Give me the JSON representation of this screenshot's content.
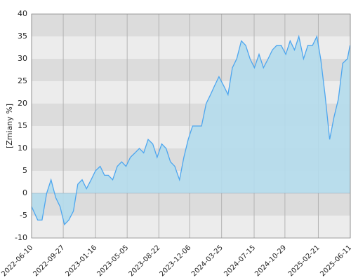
{
  "chart_data": {
    "type": "area",
    "ylabel": "[Zmiany %]",
    "x": [
      "2022-06-10",
      "2022-07-01",
      "2022-07-16",
      "2022-08-01",
      "2022-08-16",
      "2022-09-01",
      "2022-09-16",
      "2022-10-01",
      "2022-10-16",
      "2022-11-01",
      "2022-11-16",
      "2022-12-01",
      "2022-12-16",
      "2023-01-01",
      "2023-01-16",
      "2023-02-01",
      "2023-02-16",
      "2023-03-01",
      "2023-03-16",
      "2023-04-01",
      "2023-04-16",
      "2023-05-01",
      "2023-05-16",
      "2023-06-01",
      "2023-06-16",
      "2023-07-01",
      "2023-07-16",
      "2023-08-01",
      "2023-08-16",
      "2023-09-01",
      "2023-09-16",
      "2023-10-01",
      "2023-10-16",
      "2023-11-01",
      "2023-11-16",
      "2023-12-01",
      "2023-12-16",
      "2024-01-01",
      "2024-01-16",
      "2024-02-01",
      "2024-02-16",
      "2024-03-01",
      "2024-03-16",
      "2024-04-01",
      "2024-04-16",
      "2024-05-01",
      "2024-05-16",
      "2024-06-01",
      "2024-06-16",
      "2024-07-01",
      "2024-07-16",
      "2024-08-01",
      "2024-08-16",
      "2024-09-01",
      "2024-09-16",
      "2024-10-01",
      "2024-10-16",
      "2024-11-01",
      "2024-11-16",
      "2024-12-01",
      "2024-12-16",
      "2025-01-01",
      "2025-01-16",
      "2025-02-01",
      "2025-02-16",
      "2025-03-01",
      "2025-03-16",
      "2025-04-01",
      "2025-04-16",
      "2025-05-01",
      "2025-05-16",
      "2025-06-01",
      "2025-06-10"
    ],
    "series": [
      {
        "color": "#4da6ef",
        "fill": "#b4dcec",
        "values": [
          -3,
          -6,
          -6,
          0,
          3,
          -1,
          -3,
          -7,
          -6,
          -4,
          2,
          3,
          1,
          3,
          5,
          6,
          4,
          4,
          3,
          6,
          7,
          6,
          8,
          9,
          10,
          9,
          12,
          11,
          8,
          11,
          10,
          7,
          6,
          3,
          8,
          12,
          15,
          15,
          15,
          20,
          22,
          24,
          26,
          24,
          22,
          28,
          30,
          34,
          33,
          30,
          28,
          31,
          28,
          30,
          32,
          33,
          33,
          31,
          34,
          32,
          35,
          30,
          33,
          33,
          35,
          30,
          22,
          12,
          17,
          21,
          29,
          30,
          33
        ]
      }
    ],
    "xlim": [
      "2022-06-10",
      "2025-06-11"
    ],
    "xticks": [
      "2022-06-10",
      "2022-09-27",
      "2023-01-16",
      "2023-05-05",
      "2023-08-22",
      "2023-12-06",
      "2024-03-25",
      "2024-07-15",
      "2024-10-29",
      "2025-02-21",
      "2025-06-11"
    ],
    "ylim": [
      -10,
      40
    ],
    "yticks": [
      -10,
      -5,
      0,
      5,
      10,
      15,
      20,
      25,
      30,
      35,
      40
    ],
    "grid": true
  }
}
